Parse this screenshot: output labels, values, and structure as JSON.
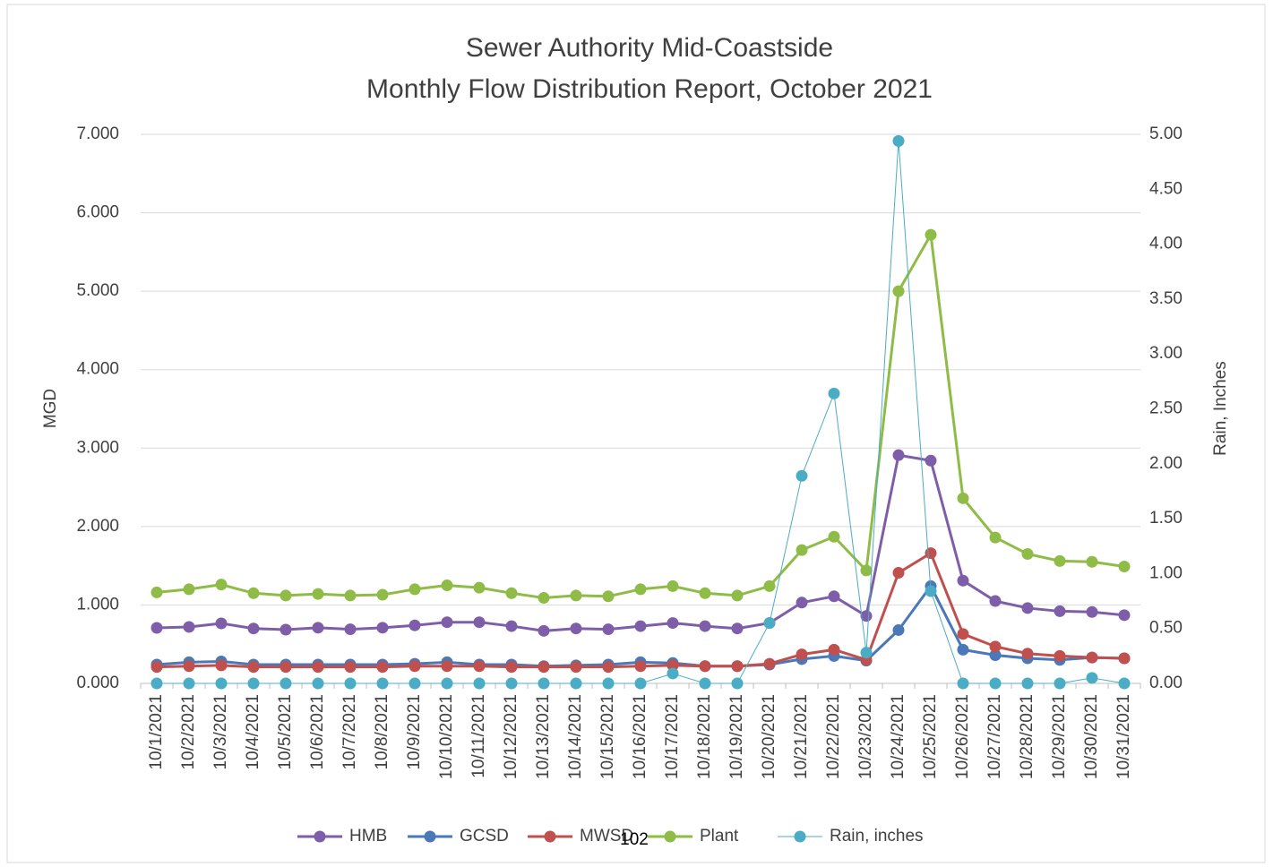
{
  "chart_data": {
    "type": "line",
    "title": "Sewer Authority Mid-Coastside",
    "subtitle": "Monthly Flow Distribution Report, October 2021",
    "y_label": "MGD",
    "y2_label": "Rain, Inches",
    "categories": [
      "10/1/2021",
      "10/2/2021",
      "10/3/2021",
      "10/4/2021",
      "10/5/2021",
      "10/6/2021",
      "10/7/2021",
      "10/8/2021",
      "10/9/2021",
      "10/10/2021",
      "10/11/2021",
      "10/12/2021",
      "10/13/2021",
      "10/14/2021",
      "10/15/2021",
      "10/16/2021",
      "10/17/2021",
      "10/18/2021",
      "10/19/2021",
      "10/20/2021",
      "10/21/2021",
      "10/22/2021",
      "10/23/2021",
      "10/24/2021",
      "10/25/2021",
      "10/26/2021",
      "10/27/2021",
      "10/28/2021",
      "10/29/2021",
      "10/30/2021",
      "10/31/2021"
    ],
    "series": [
      {
        "name": "HMB",
        "color": "#7e5ea8",
        "line_width": 3,
        "values": [
          0.708,
          0.72,
          0.765,
          0.7,
          0.685,
          0.71,
          0.69,
          0.71,
          0.74,
          0.78,
          0.78,
          0.73,
          0.67,
          0.7,
          0.69,
          0.73,
          0.77,
          0.73,
          0.7,
          0.77,
          1.03,
          1.11,
          0.86,
          2.91,
          2.84,
          1.31,
          1.05,
          0.96,
          0.92,
          0.91,
          0.87
        ]
      },
      {
        "name": "GCSD",
        "color": "#4a78b8",
        "line_width": 3,
        "values": [
          0.24,
          0.27,
          0.28,
          0.24,
          0.24,
          0.24,
          0.24,
          0.24,
          0.25,
          0.27,
          0.24,
          0.24,
          0.22,
          0.23,
          0.24,
          0.27,
          0.26,
          0.22,
          0.22,
          0.24,
          0.31,
          0.35,
          0.29,
          0.68,
          1.24,
          0.43,
          0.36,
          0.32,
          0.3,
          0.33,
          0.32
        ]
      },
      {
        "name": "MWSD",
        "color": "#c0504d",
        "line_width": 3,
        "values": [
          0.21,
          0.22,
          0.23,
          0.21,
          0.21,
          0.21,
          0.21,
          0.21,
          0.22,
          0.22,
          0.22,
          0.21,
          0.21,
          0.21,
          0.21,
          0.22,
          0.23,
          0.22,
          0.22,
          0.25,
          0.37,
          0.43,
          0.3,
          1.41,
          1.66,
          0.63,
          0.47,
          0.38,
          0.35,
          0.33,
          0.32
        ]
      },
      {
        "name": "Plant",
        "color": "#8fbc46",
        "line_width": 3,
        "values": [
          1.16,
          1.2,
          1.26,
          1.15,
          1.12,
          1.14,
          1.12,
          1.13,
          1.2,
          1.25,
          1.22,
          1.15,
          1.09,
          1.12,
          1.11,
          1.2,
          1.24,
          1.15,
          1.12,
          1.24,
          1.7,
          1.87,
          1.44,
          5.0,
          5.72,
          2.36,
          1.86,
          1.65,
          1.56,
          1.55,
          1.49
        ]
      },
      {
        "name": "Rain, inches",
        "color": "#4bacc6",
        "line_width": 1,
        "axis": "y2",
        "values": [
          0,
          0,
          0,
          0,
          0,
          0,
          0,
          0,
          0,
          0,
          0,
          0,
          0,
          0,
          0,
          0,
          0.09,
          0,
          0,
          0.55,
          1.89,
          2.64,
          0.28,
          4.94,
          0.84,
          0,
          0,
          0,
          0,
          0.05,
          0
        ]
      }
    ],
    "ylim": [
      0,
      7
    ],
    "yticks": [
      {
        "value": 0,
        "label": "0.000"
      },
      {
        "value": 1,
        "label": "1.000"
      },
      {
        "value": 2,
        "label": "2.000"
      },
      {
        "value": 3,
        "label": "3.000"
      },
      {
        "value": 4,
        "label": "4.000"
      },
      {
        "value": 5,
        "label": "5.000"
      },
      {
        "value": 6,
        "label": "6.000"
      },
      {
        "value": 7,
        "label": "7.000"
      }
    ],
    "y2lim": [
      0,
      5
    ],
    "y2ticks": [
      {
        "value": 0,
        "label": "0.00"
      },
      {
        "value": 0.5,
        "label": "0.50"
      },
      {
        "value": 1,
        "label": "1.00"
      },
      {
        "value": 1.5,
        "label": "1.50"
      },
      {
        "value": 2,
        "label": "2.00"
      },
      {
        "value": 2.5,
        "label": "2.50"
      },
      {
        "value": 3,
        "label": "3.00"
      },
      {
        "value": 3.5,
        "label": "3.50"
      },
      {
        "value": 4,
        "label": "4.00"
      },
      {
        "value": 4.5,
        "label": "4.50"
      },
      {
        "value": 5,
        "label": "5.00"
      }
    ],
    "grid": true,
    "legend": "bottom"
  },
  "page_number": "102"
}
